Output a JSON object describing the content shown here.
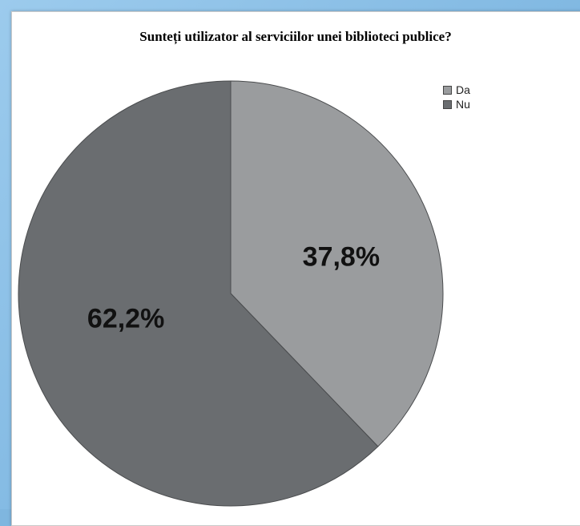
{
  "chart_data": {
    "type": "pie",
    "title": "Sunteți utilizator al serviciilor unei biblioteci publice?",
    "categories": [
      "Da",
      "Nu"
    ],
    "values": [
      37.8,
      62.2
    ],
    "labels": [
      "37,8%",
      "62,2%"
    ],
    "colors": [
      "#9a9c9e",
      "#6a6d70"
    ],
    "legend_position": "top-right"
  }
}
